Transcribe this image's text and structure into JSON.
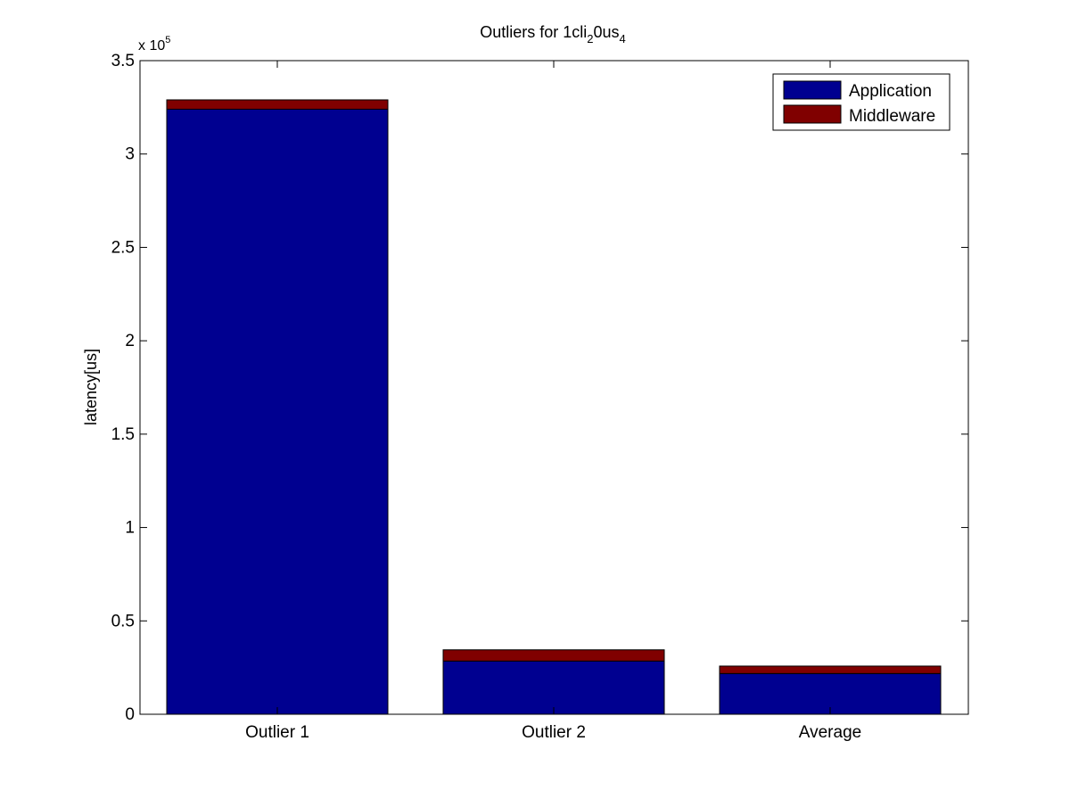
{
  "chart_data": {
    "type": "bar",
    "stacked": true,
    "title": {
      "base": "Outliers for 1cli",
      "sub1": "2",
      "mid": "0us",
      "sub2": "4"
    },
    "ylabel": "latency[us]",
    "xlabel": "",
    "y_exponent_label": {
      "base": "x 10",
      "exp": "5"
    },
    "categories": [
      "Outlier 1",
      "Outlier 2",
      "Average"
    ],
    "series": [
      {
        "name": "Application",
        "color": "#000090",
        "values": [
          324000,
          28500,
          21800
        ]
      },
      {
        "name": "Middleware",
        "color": "#800000",
        "values": [
          5000,
          6000,
          4000
        ]
      }
    ],
    "ylim": [
      0,
      350000
    ],
    "yticks": [
      0,
      50000,
      100000,
      150000,
      200000,
      250000,
      300000,
      350000
    ],
    "ytick_labels": [
      "0",
      "0.5",
      "1",
      "1.5",
      "2",
      "2.5",
      "3",
      "3.5"
    ],
    "grid": false,
    "legend_position": "top-right"
  }
}
